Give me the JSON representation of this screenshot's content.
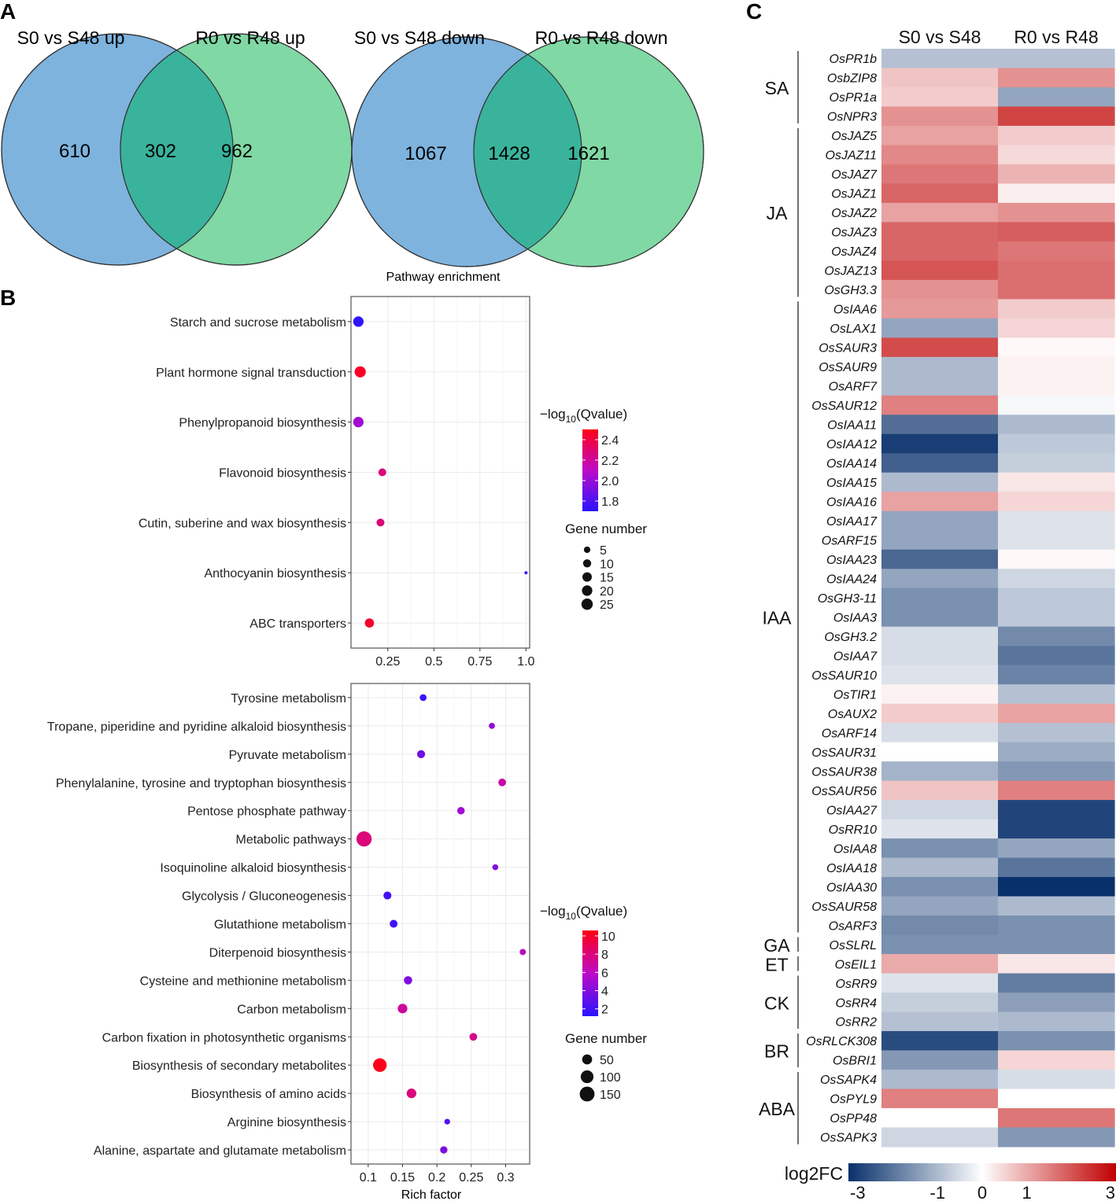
{
  "panel_labels": {
    "A": "A",
    "B": "B",
    "C": "C"
  },
  "chart_data": [
    {
      "type": "venn",
      "panel": "A",
      "left_title": "S0 vs S48 up",
      "right_title": "R0 vs R48 up",
      "left_only": 610,
      "overlap": 302,
      "right_only": 962,
      "colors": {
        "left": "#7eb3de",
        "right": "#80d8a5",
        "overlap": "#3ab39c",
        "stroke": "#333333"
      }
    },
    {
      "type": "venn",
      "panel": "A",
      "left_title": "S0 vs S48 down",
      "right_title": "R0 vs R48 down",
      "left_only": 1067,
      "overlap": 1428,
      "right_only": 1621,
      "colors": {
        "left": "#7eb3de",
        "right": "#80d8a5",
        "overlap": "#3ab39c",
        "stroke": "#333333"
      }
    },
    {
      "type": "scatter",
      "panel": "B",
      "title": "Pathway enrichment",
      "xlabel": "",
      "xlim": [
        0.05,
        1.02
      ],
      "xticks": [
        0.25,
        0.5,
        0.75,
        1.0
      ],
      "xtick_labels": [
        "0.25",
        "0.5",
        "0.75",
        "1.0"
      ],
      "color_title": "−log10(Qvalue)",
      "color_title_parts": {
        "prefix": "−log",
        "sub": "10",
        "suffix": "(Qvalue)"
      },
      "color_range": [
        1.7,
        2.5
      ],
      "color_ticks": [
        1.8,
        2.0,
        2.2,
        2.4
      ],
      "color_tick_labels": [
        "1.8",
        "2.0",
        "2.2",
        "2.4"
      ],
      "size_title": "Gene number",
      "size_legend": [
        5,
        10,
        15,
        20,
        25
      ],
      "size_range": [
        1,
        25
      ],
      "points": [
        {
          "pathway": "Starch and sucrose metabolism",
          "rich_factor": 0.09,
          "q": 1.72,
          "genes": 20
        },
        {
          "pathway": "Plant hormone signal transduction",
          "rich_factor": 0.1,
          "q": 2.46,
          "genes": 24
        },
        {
          "pathway": "Phenylpropanoid biosynthesis",
          "rich_factor": 0.09,
          "q": 2.02,
          "genes": 20
        },
        {
          "pathway": "Flavonoid biosynthesis",
          "rich_factor": 0.22,
          "q": 2.28,
          "genes": 9
        },
        {
          "pathway": "Cutin, suberine and wax biosynthesis",
          "rich_factor": 0.21,
          "q": 2.28,
          "genes": 9
        },
        {
          "pathway": "Anthocyanin biosynthesis",
          "rich_factor": 1.0,
          "q": 1.74,
          "genes": 1
        },
        {
          "pathway": "ABC transporters",
          "rich_factor": 0.15,
          "q": 2.45,
          "genes": 14
        }
      ]
    },
    {
      "type": "scatter",
      "panel": "B",
      "xlabel": "Rich factor",
      "xlim": [
        0.075,
        0.335
      ],
      "xticks": [
        0.1,
        0.15,
        0.2,
        0.25,
        0.3
      ],
      "xtick_labels": [
        "0.1",
        "0.15",
        "0.2",
        "0.25",
        "0.3"
      ],
      "color_title": "−log10(Qvalue)",
      "color_title_parts": {
        "prefix": "−log",
        "sub": "10",
        "suffix": "(Qvalue)"
      },
      "color_range": [
        1.2,
        10.6
      ],
      "color_ticks": [
        2,
        4,
        6,
        8,
        10
      ],
      "color_tick_labels": [
        "2",
        "4",
        "6",
        "8",
        "10"
      ],
      "size_title": "Gene number",
      "size_legend": [
        50,
        100,
        150
      ],
      "size_range": [
        1,
        175
      ],
      "points": [
        {
          "pathway": "Tyrosine metabolism",
          "rich_factor": 0.18,
          "q": 1.8,
          "genes": 14
        },
        {
          "pathway": "Tropane, piperidine and pyridine alkaloid biosynthesis",
          "rich_factor": 0.28,
          "q": 4.5,
          "genes": 9
        },
        {
          "pathway": "Pyruvate metabolism",
          "rich_factor": 0.177,
          "q": 3.5,
          "genes": 25
        },
        {
          "pathway": "Phenylalanine, tyrosine and tryptophan biosynthesis",
          "rich_factor": 0.295,
          "q": 6.8,
          "genes": 22
        },
        {
          "pathway": "Pentose phosphate pathway",
          "rich_factor": 0.235,
          "q": 5.0,
          "genes": 20
        },
        {
          "pathway": "Metabolic pathways",
          "rich_factor": 0.094,
          "q": 8.0,
          "genes": 160
        },
        {
          "pathway": "Isoquinoline alkaloid biosynthesis",
          "rich_factor": 0.285,
          "q": 4.0,
          "genes": 8
        },
        {
          "pathway": "Glycolysis / Gluconeogenesis",
          "rich_factor": 0.128,
          "q": 2.0,
          "genes": 25
        },
        {
          "pathway": "Glutathione metabolism",
          "rich_factor": 0.137,
          "q": 2.0,
          "genes": 23
        },
        {
          "pathway": "Diterpenoid biosynthesis",
          "rich_factor": 0.325,
          "q": 6.0,
          "genes": 10
        },
        {
          "pathway": "Cysteine and methionine metabolism",
          "rich_factor": 0.158,
          "q": 4.0,
          "genes": 28
        },
        {
          "pathway": "Carbon metabolism",
          "rich_factor": 0.15,
          "q": 7.0,
          "genes": 45
        },
        {
          "pathway": "Carbon fixation in photosynthetic organisms",
          "rich_factor": 0.253,
          "q": 7.5,
          "genes": 22
        },
        {
          "pathway": "Biosynthesis of secondary metabolites",
          "rich_factor": 0.117,
          "q": 10.5,
          "genes": 120
        },
        {
          "pathway": "Biosynthesis of amino acids",
          "rich_factor": 0.163,
          "q": 8.0,
          "genes": 45
        },
        {
          "pathway": "Arginine biosynthesis",
          "rich_factor": 0.215,
          "q": 2.5,
          "genes": 7
        },
        {
          "pathway": "Alanine, aspartate and glutamate metabolism",
          "rich_factor": 0.21,
          "q": 4.0,
          "genes": 18
        }
      ]
    },
    {
      "type": "heatmap",
      "panel": "C",
      "columns": [
        "S0 vs S48",
        "R0 vs R48"
      ],
      "colorbar_label": "log2FC",
      "color_range": [
        -3,
        3
      ],
      "colorbar_ticks": [
        -3,
        -1,
        0,
        1,
        3
      ],
      "colorbar_tick_labels": [
        "-3",
        "-1",
        "0",
        "1",
        "3"
      ],
      "colors": {
        "neg": "#08306b",
        "mid": "#ffffff",
        "pos": "#c00000"
      },
      "groups": [
        {
          "name": "SA",
          "rows": [
            {
              "gene": "OsPR1b",
              "values": [
                -0.9,
                -0.9
              ]
            },
            {
              "gene": "OsbZIP8",
              "values": [
                0.7,
                1.3
              ]
            },
            {
              "gene": "OsPR1a",
              "values": [
                0.6,
                -1.3
              ]
            },
            {
              "gene": "OsNPR3",
              "values": [
                1.3,
                2.2
              ]
            }
          ]
        },
        {
          "name": "JA",
          "rows": [
            {
              "gene": "OsJAZ5",
              "values": [
                1.1,
                0.6
              ]
            },
            {
              "gene": "OsJAZ11",
              "values": [
                1.4,
                0.45
              ]
            },
            {
              "gene": "OsJAZ7",
              "values": [
                1.6,
                0.9
              ]
            },
            {
              "gene": "OsJAZ1",
              "values": [
                1.8,
                0.2
              ]
            },
            {
              "gene": "OsJAZ2",
              "values": [
                1.1,
                1.3
              ]
            },
            {
              "gene": "OsJAZ3",
              "values": [
                1.8,
                1.9
              ]
            },
            {
              "gene": "OsJAZ4",
              "values": [
                1.8,
                1.6
              ]
            },
            {
              "gene": "OsJAZ13",
              "values": [
                2.0,
                1.7
              ]
            },
            {
              "gene": "OsGH3.3",
              "values": [
                1.3,
                1.7
              ]
            }
          ]
        },
        {
          "name": "IAA",
          "rows": [
            {
              "gene": "OsIAA6",
              "values": [
                1.2,
                0.6
              ]
            },
            {
              "gene": "OsLAX1",
              "values": [
                -1.3,
                0.5
              ]
            },
            {
              "gene": "OsSAUR3",
              "values": [
                2.1,
                0.1
              ]
            },
            {
              "gene": "OsSAUR9",
              "values": [
                -1.0,
                0.15
              ]
            },
            {
              "gene": "OsARF7",
              "values": [
                -1.0,
                0.15
              ]
            },
            {
              "gene": "OsSAUR12",
              "values": [
                1.5,
                -0.1
              ]
            },
            {
              "gene": "OsIAA11",
              "values": [
                -2.1,
                -1.0
              ]
            },
            {
              "gene": "OsIAA12",
              "values": [
                -2.8,
                -0.8
              ]
            },
            {
              "gene": "OsIAA14",
              "values": [
                -2.3,
                -0.7
              ]
            },
            {
              "gene": "OsIAA15",
              "values": [
                -1.0,
                0.3
              ]
            },
            {
              "gene": "OsIAA16",
              "values": [
                1.1,
                0.5
              ]
            },
            {
              "gene": "OsIAA17",
              "values": [
                -1.3,
                -0.4
              ]
            },
            {
              "gene": "OsARF15",
              "values": [
                -1.3,
                -0.4
              ]
            },
            {
              "gene": "OsIAA23",
              "values": [
                -2.2,
                0.1
              ]
            },
            {
              "gene": "OsIAA24",
              "values": [
                -1.3,
                -0.6
              ]
            },
            {
              "gene": "OsGH3-11",
              "values": [
                -1.6,
                -0.8
              ]
            },
            {
              "gene": "OsIAA3",
              "values": [
                -1.6,
                -0.8
              ]
            },
            {
              "gene": "OsGH3.2",
              "values": [
                -0.5,
                -1.7
              ]
            },
            {
              "gene": "OsIAA7",
              "values": [
                -0.5,
                -2.0
              ]
            },
            {
              "gene": "OsSAUR10",
              "values": [
                -0.4,
                -1.8
              ]
            },
            {
              "gene": "OsTIR1",
              "values": [
                0.15,
                -0.9
              ]
            },
            {
              "gene": "OsAUX2",
              "values": [
                0.6,
                1.1
              ]
            },
            {
              "gene": "OsARF14",
              "values": [
                -0.5,
                -0.9
              ]
            },
            {
              "gene": "OsSAUR31",
              "values": [
                0.0,
                -1.2
              ]
            },
            {
              "gene": "OsSAUR38",
              "values": [
                -1.1,
                -1.5
              ]
            },
            {
              "gene": "OsSAUR56",
              "values": [
                0.7,
                1.5
              ]
            },
            {
              "gene": "OsIAA27",
              "values": [
                -0.6,
                -2.7
              ]
            },
            {
              "gene": "OsRR10",
              "values": [
                -0.4,
                -2.7
              ]
            },
            {
              "gene": "OsIAA8",
              "values": [
                -1.6,
                -1.3
              ]
            },
            {
              "gene": "OsIAA18",
              "values": [
                -1.0,
                -2.0
              ]
            },
            {
              "gene": "OsIAA30",
              "values": [
                -1.6,
                -3.0
              ]
            },
            {
              "gene": "OsSAUR58",
              "values": [
                -1.3,
                -1.0
              ]
            },
            {
              "gene": "OsARF3",
              "values": [
                -1.7,
                -1.6
              ]
            }
          ]
        },
        {
          "name": "GA",
          "rows": [
            {
              "gene": "OsSLRL",
              "values": [
                -1.6,
                -1.6
              ]
            }
          ]
        },
        {
          "name": "ET",
          "rows": [
            {
              "gene": "OsEIL1",
              "values": [
                1.0,
                0.3
              ]
            }
          ]
        },
        {
          "name": "CK",
          "rows": [
            {
              "gene": "OsRR9",
              "values": [
                -0.4,
                -1.9
              ]
            },
            {
              "gene": "OsRR4",
              "values": [
                -0.7,
                -1.4
              ]
            },
            {
              "gene": "OsRR2",
              "values": [
                -0.9,
                -1.0
              ]
            }
          ]
        },
        {
          "name": "BR",
          "rows": [
            {
              "gene": "OsRLCK308",
              "values": [
                -2.6,
                -1.6
              ]
            },
            {
              "gene": "OsBRI1",
              "values": [
                -1.5,
                0.5
              ]
            }
          ]
        },
        {
          "name": "ABA",
          "rows": [
            {
              "gene": "OsSAPK4",
              "values": [
                -1.0,
                -0.5
              ]
            },
            {
              "gene": "OsPYL9",
              "values": [
                1.5,
                0.0
              ]
            },
            {
              "gene": "OsPP48",
              "values": [
                0.0,
                1.6
              ]
            },
            {
              "gene": "OsSAPK3",
              "values": [
                -0.6,
                -1.5
              ]
            }
          ]
        }
      ]
    }
  ]
}
